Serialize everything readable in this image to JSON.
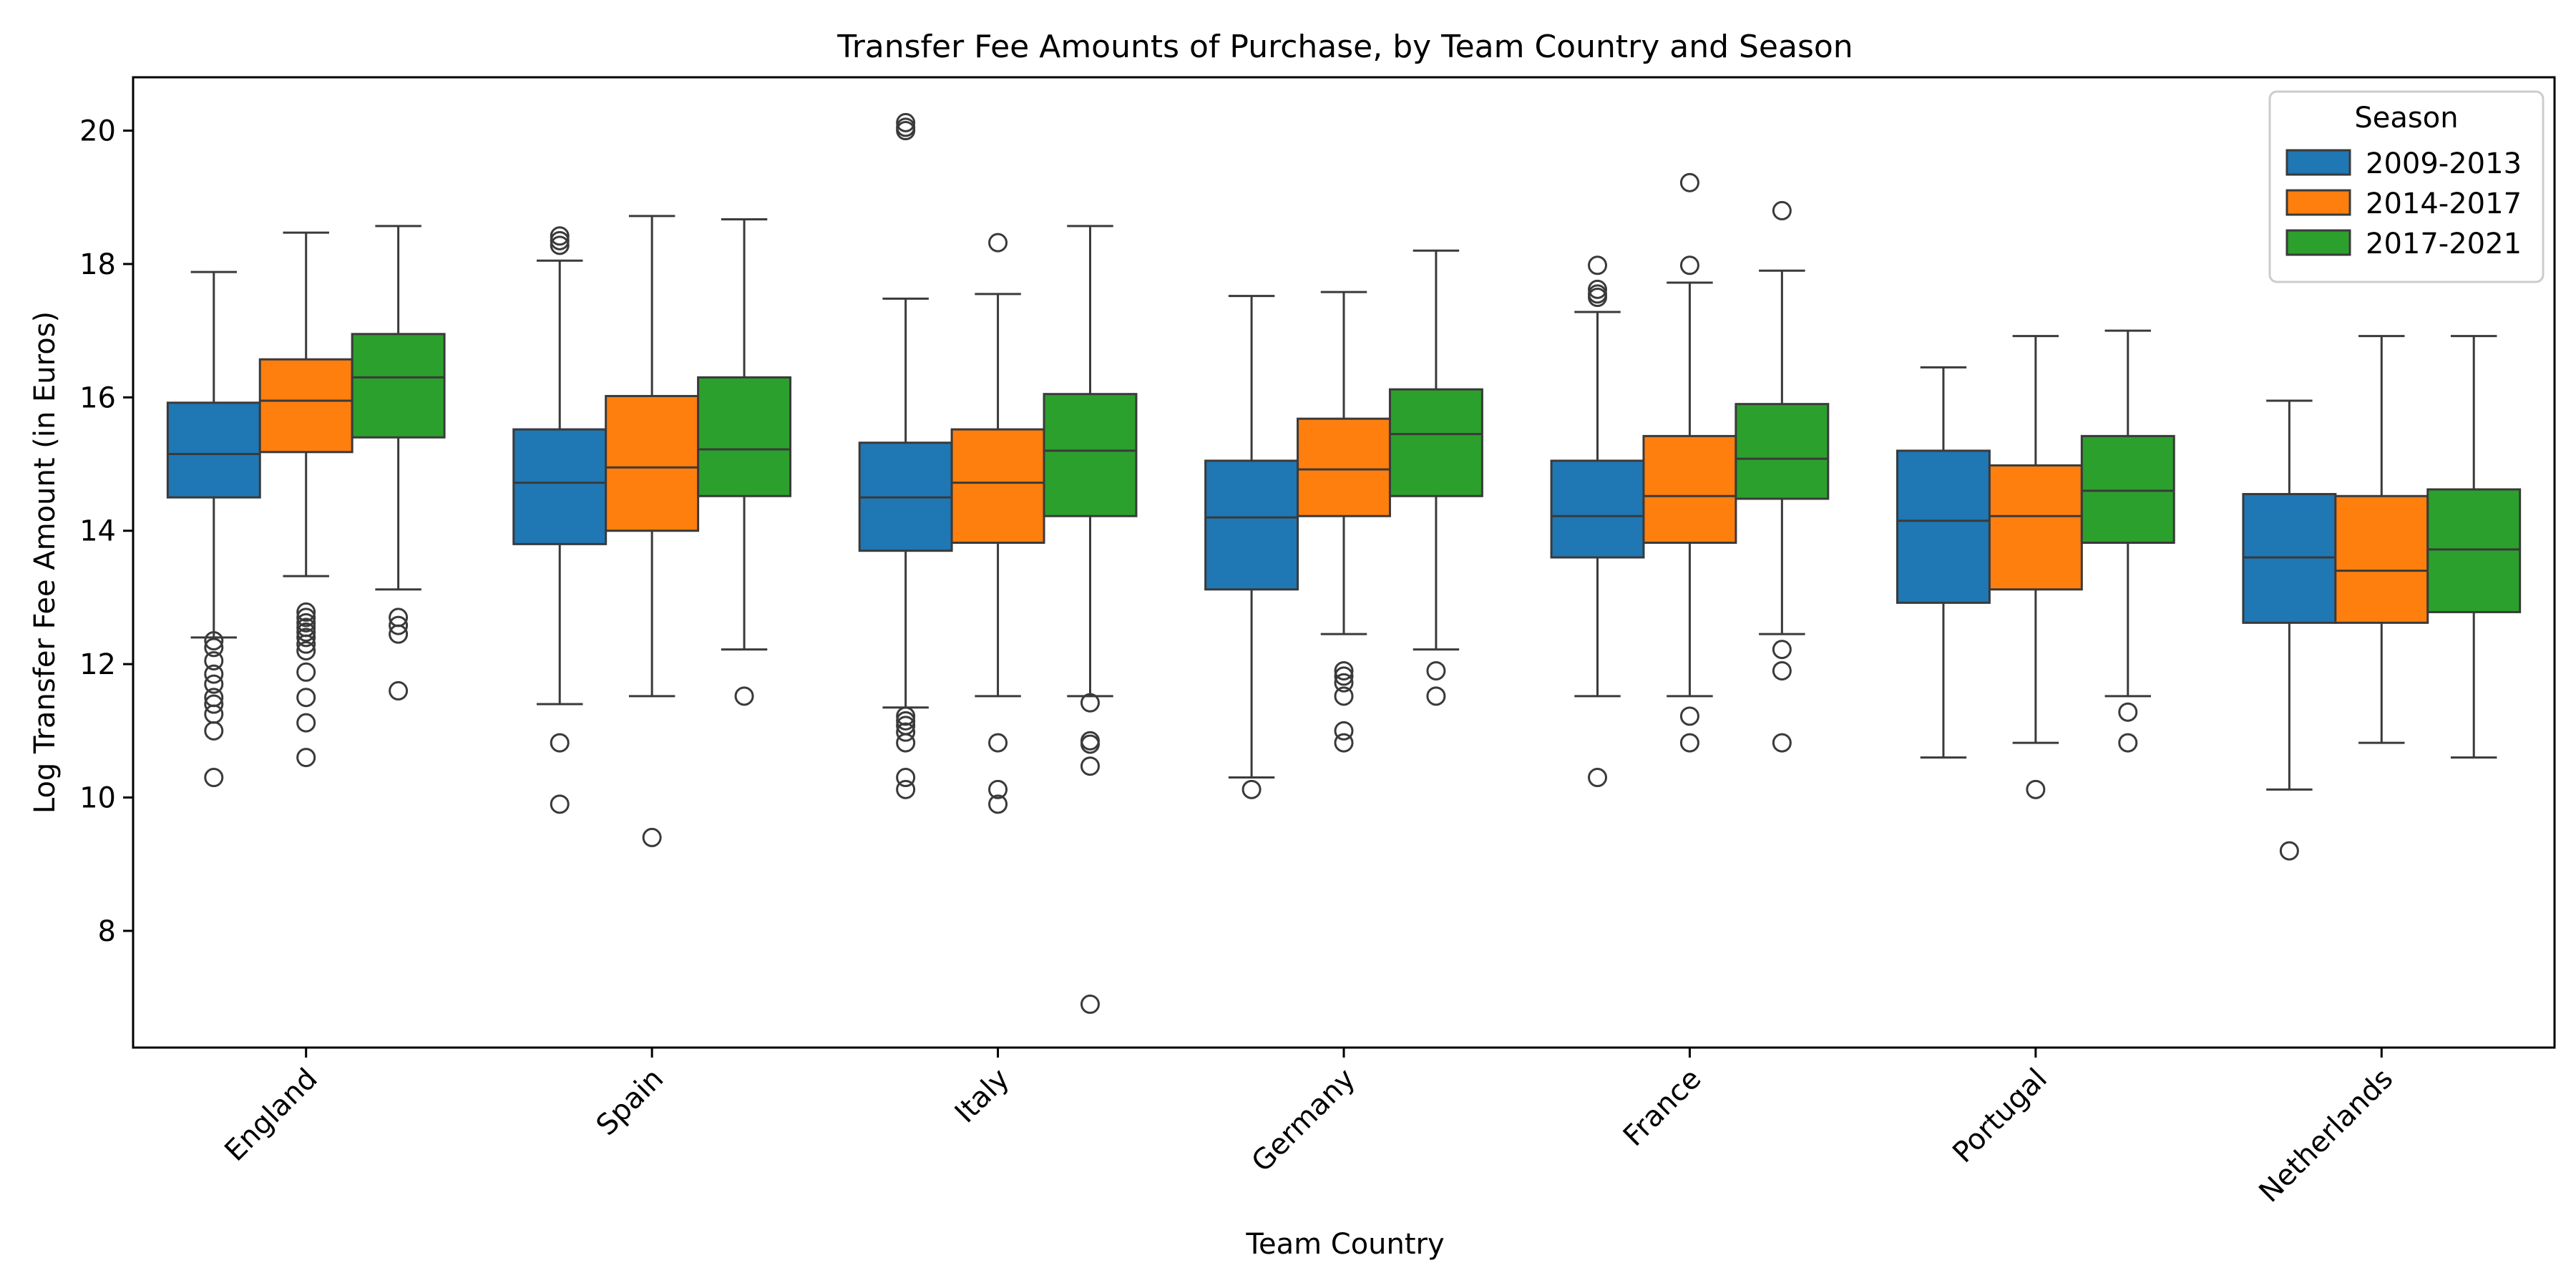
{
  "chart_data": {
    "type": "boxplot",
    "title": "Transfer Fee Amounts of Purchase, by Team Country and Season",
    "xlabel": "Team Country",
    "ylabel": "Log Transfer Fee Amount (in Euros)",
    "ylim": [
      6.25,
      20.8
    ],
    "yticks": [
      8,
      10,
      12,
      14,
      16,
      18,
      20
    ],
    "categories": [
      "England",
      "Spain",
      "Italy",
      "Germany",
      "France",
      "Portugal",
      "Netherlands"
    ],
    "legend": {
      "title": "Season",
      "position": "top-right"
    },
    "grid": false,
    "series": [
      {
        "name": "2009-2013",
        "color": "#1f77b4",
        "boxes": [
          {
            "whislo": 12.4,
            "q1": 14.5,
            "med": 15.15,
            "q3": 15.92,
            "whishi": 17.88,
            "fliers": [
              12.35,
              12.25,
              12.05,
              11.85,
              11.7,
              11.5,
              11.4,
              11.25,
              11.0,
              10.3
            ]
          },
          {
            "whislo": 11.4,
            "q1": 13.8,
            "med": 14.72,
            "q3": 15.52,
            "whishi": 18.05,
            "fliers": [
              18.42,
              18.35,
              18.28,
              10.82,
              9.9
            ]
          },
          {
            "whislo": 11.35,
            "q1": 13.7,
            "med": 14.5,
            "q3": 15.32,
            "whishi": 17.48,
            "fliers": [
              20.12,
              20.05,
              20.0,
              11.22,
              11.15,
              11.08,
              10.98,
              10.82,
              10.3,
              10.12
            ]
          },
          {
            "whislo": 10.3,
            "q1": 13.12,
            "med": 14.2,
            "q3": 15.05,
            "whishi": 17.52,
            "fliers": [
              10.12
            ]
          },
          {
            "whislo": 11.52,
            "q1": 13.6,
            "med": 14.22,
            "q3": 15.05,
            "whishi": 17.28,
            "fliers": [
              17.98,
              17.62,
              17.55,
              17.5,
              10.3
            ]
          },
          {
            "whislo": 10.6,
            "q1": 12.92,
            "med": 14.15,
            "q3": 15.2,
            "whishi": 16.45,
            "fliers": []
          },
          {
            "whislo": 10.12,
            "q1": 12.62,
            "med": 13.6,
            "q3": 14.55,
            "whishi": 15.95,
            "fliers": [
              9.2
            ]
          }
        ]
      },
      {
        "name": "2014-2017",
        "color": "#ff7f0e",
        "boxes": [
          {
            "whislo": 13.32,
            "q1": 15.18,
            "med": 15.95,
            "q3": 16.57,
            "whishi": 18.47,
            "fliers": [
              12.78,
              12.7,
              12.62,
              12.55,
              12.48,
              12.4,
              12.3,
              12.2,
              11.88,
              11.5,
              11.12,
              10.6
            ]
          },
          {
            "whislo": 11.52,
            "q1": 14.0,
            "med": 14.95,
            "q3": 16.02,
            "whishi": 18.72,
            "fliers": [
              9.4
            ]
          },
          {
            "whislo": 11.52,
            "q1": 13.82,
            "med": 14.72,
            "q3": 15.52,
            "whishi": 17.55,
            "fliers": [
              18.32,
              10.82,
              10.12,
              9.9
            ]
          },
          {
            "whislo": 12.45,
            "q1": 14.22,
            "med": 14.92,
            "q3": 15.68,
            "whishi": 17.58,
            "fliers": [
              11.9,
              11.82,
              11.72,
              11.52,
              11.0,
              10.82
            ]
          },
          {
            "whislo": 11.52,
            "q1": 13.82,
            "med": 14.52,
            "q3": 15.42,
            "whishi": 17.72,
            "fliers": [
              19.22,
              17.98,
              11.22,
              10.82
            ]
          },
          {
            "whislo": 10.82,
            "q1": 13.12,
            "med": 14.22,
            "q3": 14.98,
            "whishi": 16.92,
            "fliers": [
              10.12
            ]
          },
          {
            "whislo": 10.82,
            "q1": 12.62,
            "med": 13.4,
            "q3": 14.52,
            "whishi": 16.92,
            "fliers": []
          }
        ]
      },
      {
        "name": "2017-2021",
        "color": "#2ca02c",
        "boxes": [
          {
            "whislo": 13.12,
            "q1": 15.4,
            "med": 16.3,
            "q3": 16.95,
            "whishi": 18.57,
            "fliers": [
              12.7,
              12.58,
              12.45,
              11.6
            ]
          },
          {
            "whislo": 12.22,
            "q1": 14.52,
            "med": 15.22,
            "q3": 16.3,
            "whishi": 18.67,
            "fliers": [
              11.52
            ]
          },
          {
            "whislo": 11.52,
            "q1": 14.22,
            "med": 15.2,
            "q3": 16.05,
            "whishi": 18.57,
            "fliers": [
              11.42,
              10.85,
              10.8,
              10.47,
              6.9
            ]
          },
          {
            "whislo": 12.22,
            "q1": 14.52,
            "med": 15.45,
            "q3": 16.12,
            "whishi": 18.2,
            "fliers": [
              11.9,
              11.52
            ]
          },
          {
            "whislo": 12.45,
            "q1": 14.48,
            "med": 15.08,
            "q3": 15.9,
            "whishi": 17.9,
            "fliers": [
              18.8,
              12.22,
              11.9,
              10.82
            ]
          },
          {
            "whislo": 11.52,
            "q1": 13.82,
            "med": 14.6,
            "q3": 15.42,
            "whishi": 17.0,
            "fliers": [
              11.28,
              10.82
            ]
          },
          {
            "whislo": 10.6,
            "q1": 12.78,
            "med": 13.72,
            "q3": 14.62,
            "whishi": 16.92,
            "fliers": []
          }
        ]
      }
    ]
  }
}
